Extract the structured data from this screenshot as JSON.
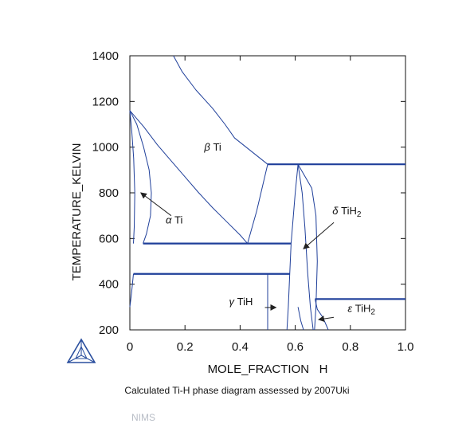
{
  "chart_data": {
    "type": "phase-diagram",
    "xlabel": "MOLE_FRACTION   H",
    "ylabel": "TEMPERATURE_KELVIN",
    "xlim": [
      0,
      1.0
    ],
    "ylim": [
      200,
      1400
    ],
    "x_ticks": [
      0,
      0.2,
      0.4,
      0.6,
      0.8,
      1.0
    ],
    "x_tick_labels": [
      "0",
      "0.2",
      "0.4",
      "0.6",
      "0.8",
      "1.0"
    ],
    "y_ticks": [
      200,
      400,
      600,
      800,
      1000,
      1200,
      1400
    ],
    "y_tick_labels": [
      "200",
      "400",
      "600",
      "800",
      "1000",
      "1200",
      "1400"
    ],
    "line_color": "#1f3f9a",
    "boundaries": [
      {
        "points": [
          [
            0.158,
            1400
          ],
          [
            0.19,
            1330
          ],
          [
            0.24,
            1250
          ],
          [
            0.3,
            1170
          ],
          [
            0.345,
            1100
          ],
          [
            0.38,
            1040
          ],
          [
            0.5,
            925
          ]
        ]
      },
      {
        "points": [
          [
            0,
            1160
          ],
          [
            0.05,
            1090
          ],
          [
            0.1,
            1010
          ],
          [
            0.15,
            940
          ],
          [
            0.2,
            870
          ],
          [
            0.25,
            800
          ],
          [
            0.3,
            735
          ],
          [
            0.35,
            675
          ],
          [
            0.4,
            615
          ],
          [
            0.427,
            578
          ]
        ]
      },
      {
        "points": [
          [
            0,
            1160
          ],
          [
            0.025,
            1100
          ],
          [
            0.05,
            1000
          ],
          [
            0.07,
            900
          ],
          [
            0.078,
            800
          ],
          [
            0.075,
            700
          ],
          [
            0.06,
            620
          ],
          [
            0.048,
            578
          ]
        ]
      },
      {
        "points": [
          [
            0,
            1160
          ],
          [
            0.007,
            1070
          ],
          [
            0.014,
            950
          ],
          [
            0.018,
            800
          ],
          [
            0.016,
            650
          ],
          [
            0.013,
            578
          ]
        ]
      },
      {
        "points": [
          [
            0.013,
            445
          ],
          [
            0.006,
            360
          ],
          [
            0,
            300
          ]
        ]
      },
      {
        "points": [
          [
            0.427,
            578
          ],
          [
            0.46,
            720
          ],
          [
            0.5,
            925
          ]
        ]
      },
      {
        "points": [
          [
            0.61,
            925
          ],
          [
            0.6,
            800
          ],
          [
            0.585,
            578
          ],
          [
            0.58,
            445
          ],
          [
            0.575,
            300
          ],
          [
            0.57,
            200
          ]
        ]
      },
      {
        "points": [
          [
            0.61,
            925
          ],
          [
            0.625,
            800
          ],
          [
            0.635,
            650
          ],
          [
            0.645,
            450
          ],
          [
            0.655,
            300
          ],
          [
            0.665,
            200
          ]
        ]
      },
      {
        "points": [
          [
            0.61,
            925
          ],
          [
            0.66,
            820
          ],
          [
            0.675,
            700
          ],
          [
            0.68,
            500
          ],
          [
            0.675,
            300
          ],
          [
            0.67,
            200
          ]
        ]
      },
      {
        "points": [
          [
            0.5,
            445
          ],
          [
            0.5,
            200
          ]
        ]
      },
      {
        "points": [
          [
            0.61,
            300
          ],
          [
            0.62,
            240
          ],
          [
            0.63,
            200
          ]
        ]
      },
      {
        "points": [
          [
            0.672,
            335
          ],
          [
            0.68,
            290
          ],
          [
            0.7,
            255
          ],
          [
            0.72,
            200
          ]
        ]
      }
    ],
    "isotherms": [
      {
        "x": [
          0.5,
          1.0
        ],
        "y": 925
      },
      {
        "x": [
          0.048,
          0.585
        ],
        "y": 578
      },
      {
        "x": [
          0.013,
          0.58
        ],
        "y": 445
      },
      {
        "x": [
          0.672,
          1.0
        ],
        "y": 335
      }
    ],
    "labels": [
      {
        "greek": "β",
        "text": " Ti",
        "x": 0.27,
        "y": 985
      },
      {
        "greek": "α",
        "text": " Ti",
        "x": 0.13,
        "y": 665
      },
      {
        "greek": "δ",
        "text": " TiH",
        "sub": "2",
        "x": 0.735,
        "y": 705
      },
      {
        "greek": "γ",
        "text": " TiH",
        "x": 0.36,
        "y": 308
      },
      {
        "greek": "ε",
        "text": " TiH",
        "sub": "2",
        "x": 0.79,
        "y": 278
      }
    ],
    "arrows": [
      {
        "from": [
          0.15,
          700
        ],
        "to": [
          0.04,
          800
        ]
      },
      {
        "from": [
          0.74,
          670
        ],
        "to": [
          0.63,
          555
        ]
      },
      {
        "from": [
          0.49,
          298
        ],
        "to": [
          0.53,
          298
        ]
      },
      {
        "from": [
          0.74,
          255
        ],
        "to": [
          0.685,
          245
        ]
      }
    ]
  },
  "caption": "Calculated Ti-H phase diagram assessed by 2007Uki",
  "source": "NIMS"
}
